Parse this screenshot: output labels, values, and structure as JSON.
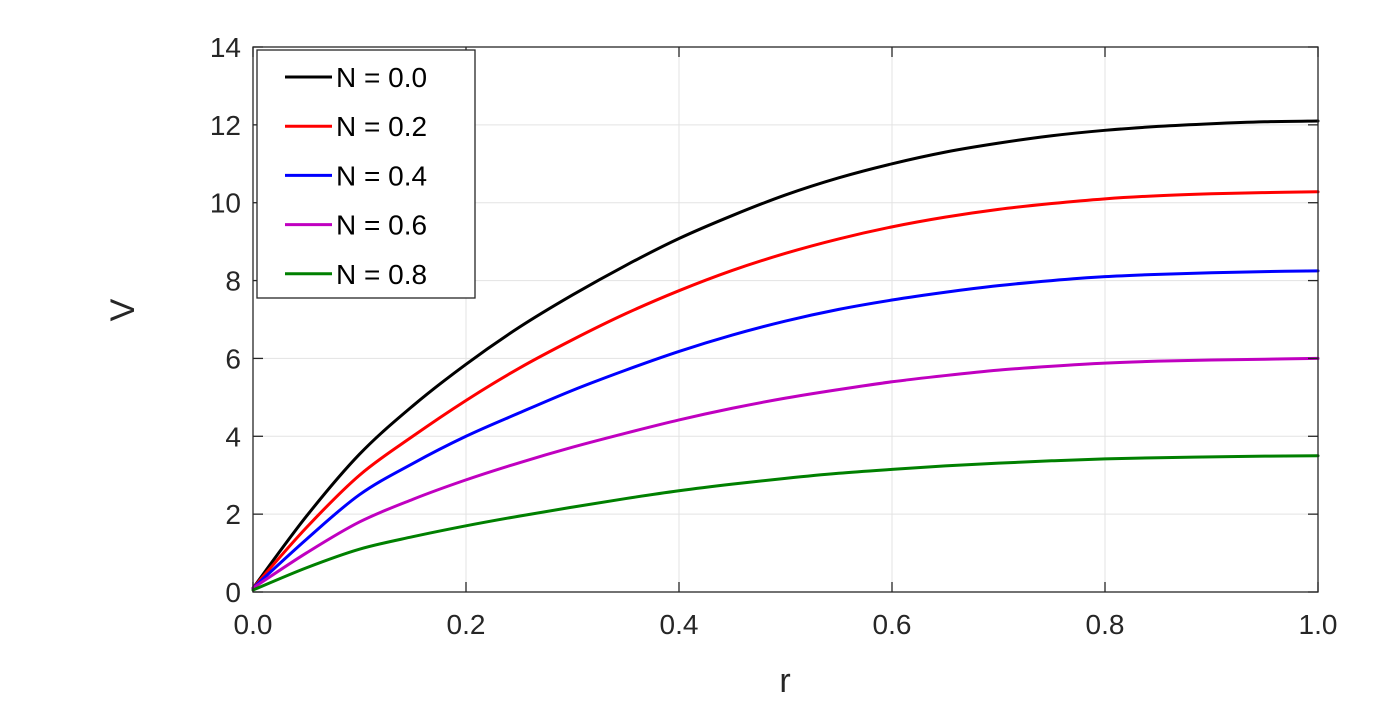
{
  "chart_data": {
    "type": "line",
    "title": "",
    "xlabel": "r",
    "ylabel": "V",
    "xlim": [
      0,
      1
    ],
    "ylim": [
      0,
      14
    ],
    "xticks": [
      0.0,
      0.2,
      0.4,
      0.6,
      0.8,
      1.0
    ],
    "xtick_labels": [
      "0.0",
      "0.2",
      "0.4",
      "0.6",
      "0.8",
      "1.0"
    ],
    "yticks": [
      0,
      2,
      4,
      6,
      8,
      10,
      12,
      14
    ],
    "ytick_labels": [
      "0",
      "2",
      "4",
      "6",
      "8",
      "10",
      "12",
      "14"
    ],
    "grid": true,
    "legend_position": "top-left",
    "x": [
      0.0,
      0.05,
      0.1,
      0.15,
      0.2,
      0.25,
      0.3,
      0.35,
      0.4,
      0.45,
      0.5,
      0.55,
      0.6,
      0.65,
      0.7,
      0.75,
      0.8,
      0.85,
      0.9,
      0.95,
      1.0
    ],
    "series": [
      {
        "name": "N = 0.0",
        "color": "#000000",
        "values": [
          0.1,
          1.94,
          3.54,
          4.78,
          5.85,
          6.8,
          7.63,
          8.39,
          9.08,
          9.67,
          10.2,
          10.64,
          11.0,
          11.3,
          11.53,
          11.72,
          11.86,
          11.96,
          12.03,
          12.08,
          12.1
        ]
      },
      {
        "name": "N = 0.2",
        "color": "#ff0000",
        "values": [
          0.1,
          1.65,
          3.0,
          4.0,
          4.92,
          5.75,
          6.48,
          7.15,
          7.74,
          8.26,
          8.7,
          9.07,
          9.38,
          9.63,
          9.83,
          9.98,
          10.1,
          10.18,
          10.23,
          10.26,
          10.28
        ]
      },
      {
        "name": "N = 0.4",
        "color": "#0000ff",
        "values": [
          0.1,
          1.35,
          2.5,
          3.3,
          4.0,
          4.6,
          5.18,
          5.7,
          6.18,
          6.6,
          6.96,
          7.26,
          7.5,
          7.7,
          7.87,
          8.0,
          8.1,
          8.16,
          8.2,
          8.23,
          8.25
        ]
      },
      {
        "name": "N = 0.6",
        "color": "#c000c0",
        "values": [
          0.1,
          1.0,
          1.8,
          2.38,
          2.88,
          3.32,
          3.72,
          4.08,
          4.42,
          4.72,
          4.98,
          5.2,
          5.4,
          5.56,
          5.7,
          5.8,
          5.88,
          5.93,
          5.96,
          5.98,
          6.0
        ]
      },
      {
        "name": "N = 0.8",
        "color": "#008000",
        "values": [
          0.05,
          0.62,
          1.1,
          1.42,
          1.7,
          1.95,
          2.18,
          2.4,
          2.6,
          2.77,
          2.92,
          3.05,
          3.15,
          3.24,
          3.31,
          3.37,
          3.42,
          3.45,
          3.47,
          3.49,
          3.5
        ]
      }
    ]
  }
}
